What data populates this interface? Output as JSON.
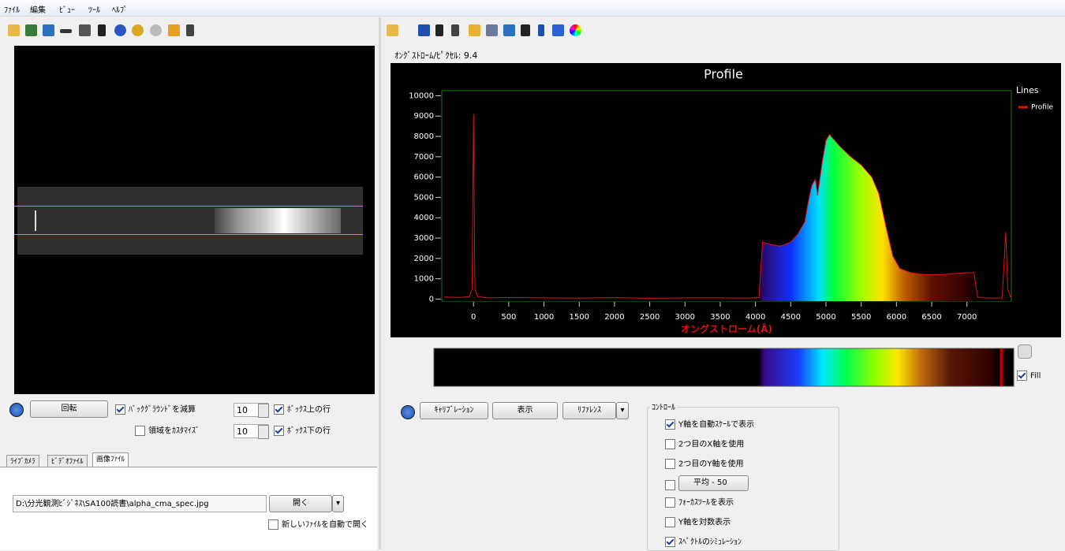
{
  "menu": [
    "ﾌｧｲﾙ",
    "編集",
    "ﾋﾞｭｰ",
    "ﾂｰﾙ",
    "ﾍﾙﾌﾟ"
  ],
  "left_panel": {
    "rotate_button": "回転",
    "options": [
      {
        "label": "ﾊﾞｯｸｸﾞﾗｳﾝﾄﾞを減算",
        "checked": true
      },
      {
        "label": "領域をｶｽﾀﾏｲｽﾞ",
        "checked": false
      }
    ],
    "rows": [
      {
        "value": 10,
        "label": "ﾎﾞｯｸｽ上の行",
        "checked": true
      },
      {
        "value": 10,
        "label": "ﾎﾞｯｸｽ下の行",
        "checked": true
      }
    ],
    "tabs": [
      "ﾗｲﾌﾞｶﾒﾗ",
      "ﾋﾞﾃﾞｵﾌｧｲﾙ",
      "画像ﾌｧｲﾙ"
    ],
    "active_tab": 2,
    "file_path": "D:\\分光観測ﾋﾞｼﾞﾈｽ\\SA100読書\\alpha_cma_spec.jpg",
    "open_button": "開く",
    "auto_open": {
      "label": "新しいﾌｧｲﾙを自動で開く",
      "checked": false
    }
  },
  "right_panel": {
    "scale_label": "ｵﾝｸﾞｽﾄﾛｰﾑ/ﾋﾟｸｾﾙ: 9.4",
    "fill": {
      "label": "Fill",
      "checked": true
    },
    "buttons": [
      "ｷｬﾘﾌﾞﾚｰｼｮﾝ",
      "表示",
      "ﾘﾌｧﾚﾝｽ"
    ],
    "controls": {
      "title": "ｺﾝﾄﾛｰﾙ",
      "items": [
        {
          "label": "Y軸を自動ｽｹｰﾙで表示",
          "checked": true
        },
        {
          "label": "2つ目のX軸を使用",
          "checked": false
        },
        {
          "label": "2つ目のY軸を使用",
          "checked": false
        },
        {
          "label": "平均 - 50",
          "checked": false,
          "dropdown": true
        },
        {
          "label": "ﾌｫｰｶｽﾂｰﾙを表示",
          "checked": false
        },
        {
          "label": "Y軸を対数表示",
          "checked": false
        },
        {
          "label": "ｽﾍﾟｸﾄﾙのｼﾐｭﾚｰｼｮﾝ",
          "checked": true
        }
      ]
    }
  },
  "chart_data": {
    "type": "line",
    "title": "Profile",
    "x_label": "オングストローム(Å)",
    "legend_title": "Lines",
    "legend": "right",
    "x": [
      -420,
      -200,
      -60,
      -20,
      0,
      20,
      60,
      200,
      500,
      1000,
      1500,
      2000,
      2500,
      3000,
      3500,
      3900,
      4050,
      4100,
      4200,
      4350,
      4500,
      4600,
      4700,
      4750,
      4800,
      4850,
      4880,
      4950,
      5000,
      5050,
      5100,
      5200,
      5350,
      5500,
      5650,
      5750,
      5850,
      5950,
      6050,
      6200,
      6400,
      6600,
      6800,
      7000,
      7100,
      7150,
      7300,
      7500,
      7550,
      7580,
      7620
    ],
    "series": [
      {
        "name": "Profile",
        "color": "#e01010",
        "values": [
          100,
          80,
          120,
          500,
          9100,
          500,
          120,
          60,
          80,
          60,
          50,
          70,
          40,
          60,
          60,
          50,
          80,
          2800,
          2700,
          2600,
          2800,
          3200,
          3800,
          4800,
          5600,
          5900,
          5100,
          6800,
          7800,
          8100,
          7900,
          7500,
          7000,
          6600,
          6000,
          5200,
          3600,
          2100,
          1500,
          1300,
          1200,
          1200,
          1250,
          1300,
          1300,
          100,
          50,
          60,
          3300,
          500,
          80
        ]
      }
    ],
    "xlim": [
      -450,
      7630
    ],
    "ylim": [
      -100,
      10250
    ],
    "xticks": [
      0,
      500,
      1000,
      1500,
      2000,
      2500,
      3000,
      3500,
      4000,
      4500,
      5000,
      5500,
      6000,
      6500,
      7000
    ],
    "yticks": [
      0,
      1000,
      2000,
      3000,
      4000,
      5000,
      6000,
      7000,
      8000,
      9000,
      10000
    ],
    "fill": true
  }
}
